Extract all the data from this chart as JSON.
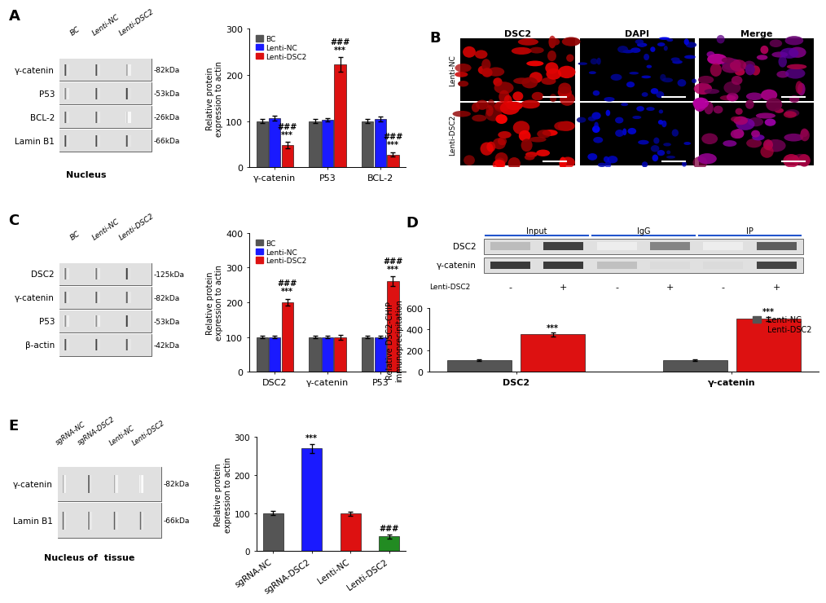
{
  "fig_bg": "#ffffff",
  "panel_A": {
    "blot_labels": [
      "γ-catenin",
      "P53",
      "BCL-2",
      "Lamin B1"
    ],
    "blot_kDa": [
      "-82kDa",
      "-53kDa",
      "-26kDa",
      "-66kDa"
    ],
    "col_labels": [
      "BC",
      "Lenti-NC",
      "Lenti-DSC2"
    ],
    "xlabel_bottom": "Nucleus",
    "bar_groups": [
      "γ-catenin",
      "P53",
      "BCL-2"
    ],
    "bar_data": {
      "BC": [
        100,
        100,
        100
      ],
      "Lenti-NC": [
        106,
        103,
        105
      ],
      "Lenti-DSC2": [
        48,
        222,
        28
      ]
    },
    "bar_errors": {
      "BC": [
        4,
        4,
        4
      ],
      "Lenti-NC": [
        5,
        4,
        5
      ],
      "Lenti-DSC2": [
        7,
        16,
        5
      ]
    },
    "colors": {
      "BC": "#555555",
      "Lenti-NC": "#1a1aff",
      "Lenti-DSC2": "#dd1111"
    },
    "ylabel": "Relative protein\nexpression to actin",
    "ylim": [
      0,
      300
    ],
    "yticks": [
      0,
      100,
      200,
      300
    ],
    "annot_gamma": {
      "Lenti-DSC2": [
        "***",
        "###"
      ]
    },
    "annot_P53": {
      "Lenti-DSC2": [
        "***",
        "###"
      ]
    },
    "annot_BCL2": {
      "Lenti-DSC2": [
        "***",
        "###"
      ]
    }
  },
  "panel_B": {
    "col_labels": [
      "DSC2",
      "DAPI",
      "Merge"
    ],
    "row_labels": [
      "Lenti-NC",
      "Lenti-DSC2"
    ]
  },
  "panel_C": {
    "blot_labels": [
      "DSC2",
      "γ-catenin",
      "P53",
      "β-actin"
    ],
    "blot_kDa": [
      "-125kDa",
      "-82kDa",
      "-53kDa",
      "-42kDa"
    ],
    "col_labels": [
      "BC",
      "Lenti-NC",
      "Lenti-DSC2"
    ],
    "bar_groups": [
      "DSC2",
      "γ-catenin",
      "P53"
    ],
    "bar_data": {
      "BC": [
        100,
        100,
        100
      ],
      "Lenti-NC": [
        100,
        100,
        100
      ],
      "Lenti-DSC2": [
        200,
        100,
        260
      ]
    },
    "bar_errors": {
      "BC": [
        4,
        4,
        4
      ],
      "Lenti-NC": [
        4,
        4,
        4
      ],
      "Lenti-DSC2": [
        10,
        7,
        14
      ]
    },
    "colors": {
      "BC": "#555555",
      "Lenti-NC": "#1a1aff",
      "Lenti-DSC2": "#dd1111"
    },
    "ylabel": "Relative protein\nexpression to actin",
    "ylim": [
      0,
      400
    ],
    "yticks": [
      0,
      100,
      200,
      300,
      400
    ],
    "annot_DSC2": {
      "Lenti-DSC2": [
        "***",
        "###"
      ]
    },
    "annot_P53": {
      "Lenti-DSC2": [
        "***",
        "###"
      ]
    }
  },
  "panel_D": {
    "blot_labels": [
      "DSC2",
      "γ-catenin"
    ],
    "col_groups": [
      "Input",
      "IgG",
      "IP"
    ],
    "bar_groups": [
      "DSC2",
      "γ-catenin"
    ],
    "bar_data": {
      "Lenti-NC": [
        110,
        110
      ],
      "Lenti-DSC2": [
        355,
        500
      ]
    },
    "bar_errors": {
      "Lenti-NC": [
        8,
        8
      ],
      "Lenti-DSC2": [
        18,
        22
      ]
    },
    "colors": {
      "Lenti-NC": "#555555",
      "Lenti-DSC2": "#dd1111"
    },
    "ylabel": "Relative DSC2-CHIP\nimmunoprecipitation",
    "ylim": [
      0,
      600
    ],
    "yticks": [
      0,
      200,
      400,
      600
    ],
    "annot_DSC2": [
      "***"
    ],
    "annot_gamma": [
      "***"
    ]
  },
  "panel_E": {
    "blot_labels": [
      "γ-catenin",
      "Lamin B1"
    ],
    "blot_kDa": [
      "-82kDa",
      "-66kDa"
    ],
    "col_labels": [
      "sgRNA-NC",
      "sgRNA-DSC2",
      "Lenti-NC",
      "Lenti-DSC2"
    ],
    "xlabel_bottom": "Nucleus of  tissue",
    "bar_groups": [
      "sgRNA-NC",
      "sgRNA-DSC2",
      "Lenti-NC",
      "Lenti-DSC2"
    ],
    "bar_data": [
      100,
      270,
      98,
      38
    ],
    "bar_errors": [
      5,
      12,
      5,
      6
    ],
    "colors": [
      "#555555",
      "#1a1aff",
      "#dd1111",
      "#228B22"
    ],
    "ylabel": "Relative protein\nexpression to actin",
    "ylim": [
      0,
      300
    ],
    "yticks": [
      0,
      100,
      200,
      300
    ],
    "annot_sgDSC2": [
      "***"
    ],
    "annot_lDSC2": [
      "###"
    ]
  }
}
